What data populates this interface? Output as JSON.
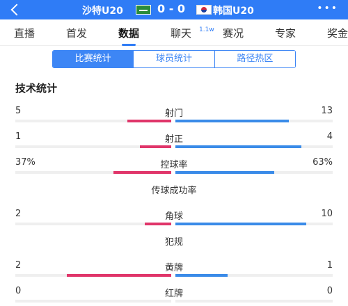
{
  "header": {
    "home_team": "沙特U20",
    "away_team": "韩国U20",
    "score": "0 - 0",
    "more_icon": "more-dots-icon"
  },
  "nav": {
    "tabs": [
      {
        "label": "直播"
      },
      {
        "label": "首发"
      },
      {
        "label": "数据"
      },
      {
        "label": "聊天",
        "badge": "1.1w"
      },
      {
        "label": "赛况"
      },
      {
        "label": "专家"
      },
      {
        "label": "奖金"
      }
    ],
    "active_index": 2
  },
  "segment": {
    "items": [
      "比赛统计",
      "球员统计",
      "路径热区"
    ],
    "active_index": 0
  },
  "section_title": "技术统计",
  "colors": {
    "header_bg": "#2f7cf6",
    "home_bar": "#e0356a",
    "away_bar": "#3a8be8",
    "track": "#efefef"
  },
  "stats": [
    {
      "name": "射门",
      "home": "5",
      "away": "13",
      "home_frac": 0.28,
      "away_frac": 0.72
    },
    {
      "name": "射正",
      "home": "1",
      "away": "4",
      "home_frac": 0.2,
      "away_frac": 0.8
    },
    {
      "name": "控球率",
      "home": "37%",
      "away": "63%",
      "home_frac": 0.37,
      "away_frac": 0.63
    },
    {
      "name": "传球成功率",
      "home": "",
      "away": "",
      "home_frac": null,
      "away_frac": null
    },
    {
      "name": "角球",
      "home": "2",
      "away": "10",
      "home_frac": 0.17,
      "away_frac": 0.83
    },
    {
      "name": "犯规",
      "home": "",
      "away": "",
      "home_frac": null,
      "away_frac": null
    },
    {
      "name": "黄牌",
      "home": "2",
      "away": "1",
      "home_frac": 0.67,
      "away_frac": 0.33
    },
    {
      "name": "红牌",
      "home": "0",
      "away": "0",
      "home_frac": 0,
      "away_frac": 0
    }
  ]
}
